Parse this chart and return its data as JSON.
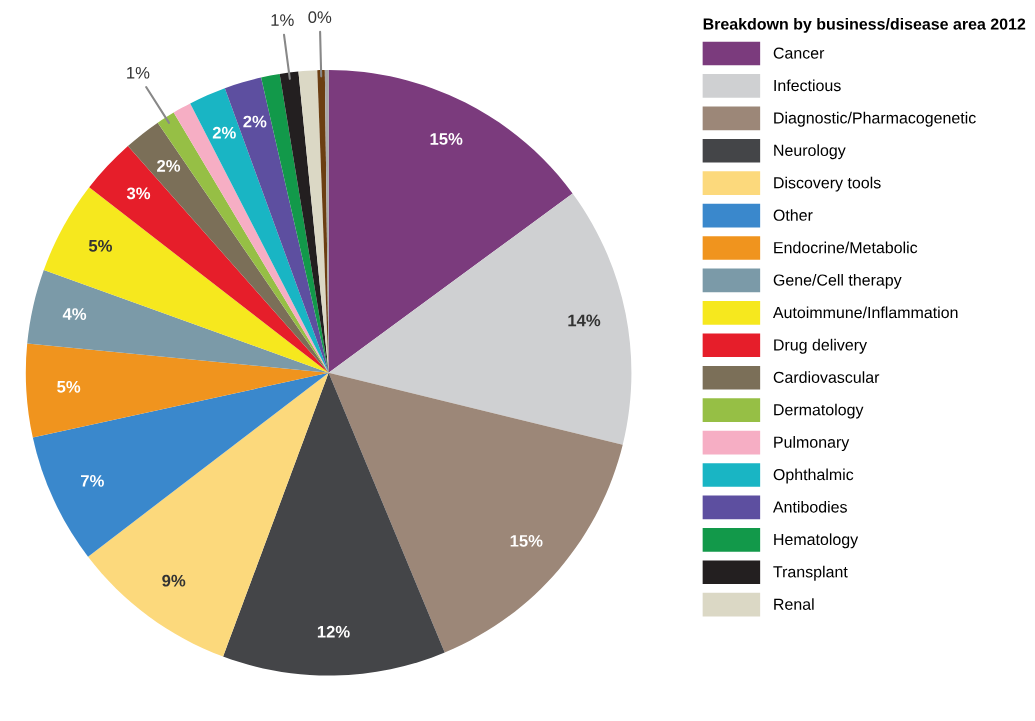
{
  "chart_data": {
    "type": "pie",
    "legend_title": "Breakdown by business/disease area 2012",
    "legend": "right",
    "categories": [
      "Cancer",
      "Infectious",
      "Diagnostic/Pharmacogenetic",
      "Neurology",
      "Discovery tools",
      "Other",
      "Endocrine/Metabolic",
      "Gene/Cell therapy",
      "Autoimmune/Inflammation",
      "Drug delivery",
      "Cardiovascular",
      "Dermatology",
      "Pulmonary",
      "Ophthalmic",
      "Antibodies",
      "Hematology",
      "Transplant",
      "Renal",
      null,
      null
    ],
    "values": [
      15,
      14,
      15,
      12,
      9,
      7,
      5,
      4,
      5,
      3,
      2,
      1,
      1,
      2,
      2,
      1,
      1,
      1,
      0.4,
      0.2
    ],
    "colors": [
      "#7b3b7d",
      "#cfd0d2",
      "#9c8778",
      "#444548",
      "#fcd97c",
      "#3a88cc",
      "#f0941e",
      "#7b9aa8",
      "#f6e81e",
      "#e61e2a",
      "#7b6f58",
      "#96bf45",
      "#f6aec4",
      "#19b5c4",
      "#5d4fa0",
      "#12994a",
      "#231f20",
      "#dbd8c5",
      "#6b3e12",
      "#a8a8a8"
    ],
    "value_labels": [
      "15%",
      "14%",
      "15%",
      "12%",
      "9%",
      "7%",
      "5%",
      "4%",
      "5%",
      "3%",
      "2%",
      null,
      null,
      "2%",
      "2%",
      null,
      null,
      null,
      null,
      null
    ],
    "annotations": [
      {
        "text": "1%",
        "x": "Dermatology"
      },
      {
        "text": "1%",
        "x": "Transplant"
      },
      "0%"
    ]
  }
}
